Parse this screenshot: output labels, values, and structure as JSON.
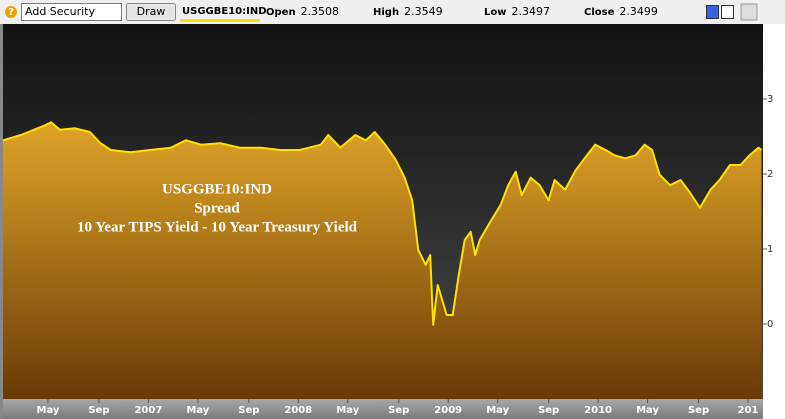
{
  "toolbar": {
    "help": "?",
    "input": "Add Security",
    "button": "Draw",
    "ticker": "USGGBE10:IND",
    "fields": [
      {
        "label": "Open",
        "value": "2.3508"
      },
      {
        "label": "High",
        "value": "2.3549"
      },
      {
        "label": "Low",
        "value": "2.3497"
      },
      {
        "label": "Close",
        "value": "2.3499"
      }
    ]
  },
  "chart_data": {
    "type": "area",
    "annotation": [
      "USGGBE10:IND",
      "Spread",
      "10 Year TIPS Yield - 10 Year Treasury Yield"
    ],
    "x": [
      2006.03,
      2006.15,
      2006.31,
      2006.35,
      2006.41,
      2006.51,
      2006.61,
      2006.68,
      2006.75,
      2006.88,
      2007.01,
      2007.15,
      2007.25,
      2007.35,
      2007.48,
      2007.61,
      2007.75,
      2007.88,
      2008.01,
      2008.15,
      2008.2,
      2008.28,
      2008.38,
      2008.45,
      2008.51,
      2008.58,
      2008.65,
      2008.71,
      2008.76,
      2008.8,
      2008.85,
      2008.88,
      2008.9,
      2008.93,
      2008.96,
      2008.99,
      2009.03,
      2009.07,
      2009.11,
      2009.15,
      2009.18,
      2009.21,
      2009.28,
      2009.35,
      2009.4,
      2009.45,
      2009.49,
      2009.55,
      2009.61,
      2009.67,
      2009.71,
      2009.78,
      2009.85,
      2009.91,
      2009.98,
      2010.05,
      2010.11,
      2010.18,
      2010.25,
      2010.31,
      2010.36,
      2010.41,
      2010.48,
      2010.55,
      2010.61,
      2010.68,
      2010.75,
      2010.81,
      2010.88,
      2010.95,
      2011.01,
      2011.07,
      2011.09
    ],
    "series": [
      {
        "name": "USGGBE10:IND",
        "color": "#ffe000",
        "values": [
          2.45,
          2.52,
          2.65,
          2.69,
          2.59,
          2.61,
          2.56,
          2.41,
          2.32,
          2.29,
          2.32,
          2.35,
          2.45,
          2.39,
          2.41,
          2.35,
          2.35,
          2.32,
          2.32,
          2.39,
          2.52,
          2.35,
          2.52,
          2.45,
          2.56,
          2.39,
          2.19,
          1.95,
          1.65,
          0.99,
          0.79,
          0.92,
          -0.01,
          0.52,
          0.32,
          0.12,
          0.12,
          0.65,
          1.12,
          1.23,
          0.92,
          1.12,
          1.36,
          1.59,
          1.85,
          2.03,
          1.72,
          1.95,
          1.85,
          1.65,
          1.92,
          1.79,
          2.05,
          2.21,
          2.39,
          2.32,
          2.25,
          2.21,
          2.25,
          2.39,
          2.32,
          1.99,
          1.85,
          1.92,
          1.76,
          1.55,
          1.79,
          1.92,
          2.12,
          2.12,
          2.25,
          2.35,
          2.32
        ]
      }
    ],
    "area_colors": [
      "#e0a428",
      "#6a3a06"
    ],
    "background_colors": [
      "#111111",
      "#4a4a4a"
    ],
    "xlim": [
      2006.03,
      2011.1
    ],
    "xticks": [
      {
        "value": 2006.33,
        "label": "May"
      },
      {
        "value": 2006.67,
        "label": "Sep"
      },
      2007,
      {
        "value": 2007.33,
        "label": "May"
      },
      {
        "value": 2007.67,
        "label": "Sep"
      },
      2008,
      {
        "value": 2008.33,
        "label": "May"
      },
      {
        "value": 2008.67,
        "label": "Sep"
      },
      2009,
      {
        "value": 2009.33,
        "label": "May"
      },
      {
        "value": 2009.67,
        "label": "Sep"
      },
      2010,
      {
        "value": 2010.33,
        "label": "May"
      },
      {
        "value": 2010.67,
        "label": "Sep"
      },
      {
        "value": 2011,
        "label": "201"
      }
    ],
    "ylim": [
      -1,
      4
    ],
    "yticks": [
      0,
      1,
      2,
      3
    ],
    "grid": false
  }
}
